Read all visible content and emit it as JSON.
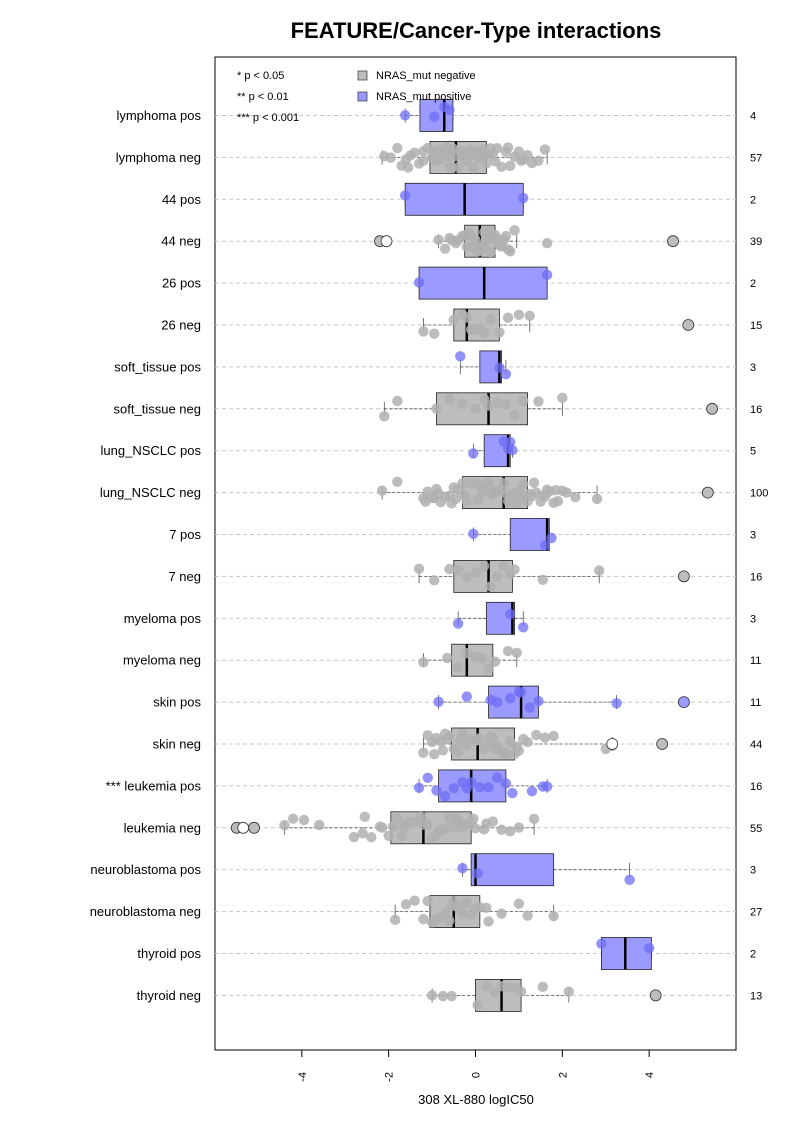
{
  "chart_data": {
    "type": "boxplot",
    "title": "FEATURE/Cancer-Type interactions",
    "xlabel": "308 XL-880 logIC50",
    "xlim": [
      -6.0,
      6.0
    ],
    "xticks": [
      -4,
      -2,
      0,
      2,
      4
    ],
    "xtick_labels": [
      "-4",
      "-2",
      "0",
      "2",
      "4"
    ],
    "grid": "horizontal dashed",
    "legend_position": "top-left",
    "legend": [
      {
        "name": "NRAS_mut negative",
        "color": "#bdbdbd"
      },
      {
        "name": "NRAS_mut positive",
        "color": "#9b9bff"
      }
    ],
    "significance_legend": [
      "* p < 0.05",
      "** p < 0.01",
      "*** p < 0.001"
    ],
    "series_colors": {
      "negative_box": "#bdbdbd",
      "positive_box": "#9b9bff",
      "negative_point": "#b0b0b0",
      "positive_point": "#6e6ef5"
    },
    "groups": [
      {
        "label": "lymphoma pos",
        "status": "positive",
        "n": "4",
        "q1": -1.28,
        "median": -0.72,
        "q3": -0.52,
        "wlo": -1.62,
        "whi": -0.52,
        "points": [
          -1.62,
          -0.95,
          -0.72,
          -0.6
        ],
        "outliers": []
      },
      {
        "label": "lymphoma neg",
        "status": "negative",
        "n": "57",
        "q1": -1.05,
        "median": -0.45,
        "q3": 0.25,
        "wlo": -2.15,
        "whi": 1.65,
        "points": [
          -2.1,
          -1.95,
          -1.8,
          -1.7,
          -1.6,
          -1.5,
          -1.4,
          -1.3,
          -1.2,
          -1.1,
          -1.0,
          -0.95,
          -0.9,
          -0.85,
          -0.8,
          -0.75,
          -0.7,
          -0.65,
          -0.6,
          -0.55,
          -0.5,
          -0.45,
          -0.4,
          -0.35,
          -0.3,
          -0.25,
          -0.2,
          -0.15,
          -0.1,
          -0.05,
          0.0,
          0.05,
          0.1,
          0.15,
          0.2,
          0.25,
          0.3,
          0.4,
          0.5,
          0.6,
          0.7,
          0.8,
          0.9,
          1.0,
          1.1,
          1.2,
          1.3,
          1.45,
          1.6,
          -1.2,
          -0.6,
          0.35,
          0.75,
          -0.3,
          0.45,
          1.05,
          -1.55
        ],
        "outliers": []
      },
      {
        "label": "44 pos",
        "status": "positive",
        "n": "2",
        "q1": -1.62,
        "median": -0.25,
        "q3": 1.1,
        "wlo": -1.62,
        "whi": 1.1,
        "points": [
          -1.62,
          1.1
        ],
        "outliers": []
      },
      {
        "label": "44 neg",
        "status": "negative",
        "n": "39",
        "q1": -0.25,
        "median": 0.1,
        "q3": 0.45,
        "wlo": -0.85,
        "whi": 0.95,
        "points": [
          -2.05,
          -0.85,
          -0.7,
          -0.55,
          -0.4,
          -0.3,
          -0.25,
          -0.2,
          -0.15,
          -0.1,
          -0.05,
          0.0,
          0.05,
          0.1,
          0.12,
          0.15,
          0.2,
          0.25,
          0.3,
          0.35,
          0.4,
          0.45,
          0.5,
          0.55,
          0.6,
          0.7,
          0.8,
          0.9,
          -0.6,
          -0.45,
          0.0,
          0.2,
          0.35,
          0.65,
          0.75,
          1.65
        ],
        "outliers": [
          {
            "x": -2.2,
            "open": false
          },
          {
            "x": -2.05,
            "open": true
          },
          {
            "x": 4.55,
            "open": false
          }
        ]
      },
      {
        "label": "26 pos",
        "status": "positive",
        "n": "2",
        "q1": -1.3,
        "median": 0.2,
        "q3": 1.65,
        "wlo": -1.3,
        "whi": 1.65,
        "points": [
          -1.3,
          1.65
        ],
        "outliers": []
      },
      {
        "label": "26 neg",
        "status": "negative",
        "n": "15",
        "q1": -0.5,
        "median": -0.2,
        "q3": 0.55,
        "wlo": -1.2,
        "whi": 1.25,
        "points": [
          -1.2,
          -0.95,
          -0.5,
          -0.3,
          -0.2,
          -0.1,
          0.0,
          0.1,
          0.2,
          0.35,
          0.55,
          0.75,
          1.0,
          1.25
        ],
        "outliers": [
          {
            "x": 4.9,
            "open": false
          }
        ]
      },
      {
        "label": "soft_tissue pos",
        "status": "positive",
        "n": "3",
        "q1": 0.1,
        "median": 0.55,
        "q3": 0.6,
        "wlo": -0.35,
        "whi": 0.7,
        "points": [
          -0.35,
          0.55,
          0.7
        ],
        "outliers": []
      },
      {
        "label": "soft_tissue neg",
        "status": "negative",
        "n": "16",
        "q1": -0.9,
        "median": 0.3,
        "q3": 1.2,
        "wlo": -2.1,
        "whi": 2.0,
        "points": [
          -2.1,
          -1.8,
          -0.9,
          -0.6,
          -0.3,
          0.0,
          0.2,
          0.3,
          0.5,
          0.7,
          0.9,
          1.1,
          1.45,
          2.0
        ],
        "outliers": [
          {
            "x": 5.45,
            "open": false
          }
        ]
      },
      {
        "label": "lung_NSCLC pos",
        "status": "positive",
        "n": "5",
        "q1": 0.2,
        "median": 0.75,
        "q3": 0.8,
        "wlo": -0.05,
        "whi": 0.85,
        "points": [
          -0.05,
          0.65,
          0.75,
          0.8,
          0.85
        ],
        "outliers": []
      },
      {
        "label": "lung_NSCLC neg",
        "status": "negative",
        "n": "100",
        "q1": -0.3,
        "median": 0.65,
        "q3": 1.2,
        "wlo": -2.15,
        "whi": 2.8,
        "points": [
          -2.15,
          -1.8,
          -1.2,
          -1.1,
          -1.0,
          -0.9,
          -0.8,
          -0.7,
          -0.6,
          -0.5,
          -0.4,
          -0.3,
          -0.2,
          -0.1,
          0.0,
          0.1,
          0.2,
          0.3,
          0.4,
          0.5,
          0.6,
          0.7,
          0.8,
          0.9,
          1.0,
          1.1,
          1.2,
          1.3,
          1.4,
          1.5,
          1.6,
          1.7,
          1.8,
          1.9,
          2.0,
          2.1,
          2.3,
          2.8,
          -1.15,
          -0.85,
          -0.55,
          -0.25,
          0.05,
          0.35,
          0.65,
          0.95,
          1.25,
          1.55,
          1.85,
          -0.95,
          -0.45,
          0.15,
          0.45,
          0.75,
          1.05,
          1.35,
          1.65
        ],
        "outliers": [
          {
            "x": 5.35,
            "open": false
          }
        ]
      },
      {
        "label": "7 pos",
        "status": "positive",
        "n": "3",
        "q1": 0.8,
        "median": 1.65,
        "q3": 1.7,
        "wlo": -0.05,
        "whi": 1.7,
        "points": [
          -0.05,
          1.6,
          1.75
        ],
        "outliers": []
      },
      {
        "label": "7 neg",
        "status": "negative",
        "n": "16",
        "q1": -0.5,
        "median": 0.3,
        "q3": 0.85,
        "wlo": -1.3,
        "whi": 2.85,
        "points": [
          -1.3,
          -0.95,
          -0.6,
          -0.4,
          -0.2,
          0.0,
          0.2,
          0.35,
          0.5,
          0.65,
          0.8,
          0.9,
          1.55,
          2.85
        ],
        "outliers": [
          {
            "x": 4.8,
            "open": false
          }
        ]
      },
      {
        "label": "myeloma pos",
        "status": "positive",
        "n": "3",
        "q1": 0.25,
        "median": 0.85,
        "q3": 0.9,
        "wlo": -0.4,
        "whi": 1.1,
        "points": [
          -0.4,
          0.8,
          1.1
        ],
        "outliers": []
      },
      {
        "label": "myeloma neg",
        "status": "negative",
        "n": "11",
        "q1": -0.55,
        "median": -0.2,
        "q3": 0.4,
        "wlo": -1.2,
        "whi": 0.95,
        "points": [
          -1.2,
          -0.65,
          -0.4,
          -0.2,
          0.0,
          0.15,
          0.3,
          0.45,
          0.75,
          0.95
        ],
        "outliers": []
      },
      {
        "label": "skin pos",
        "status": "positive",
        "n": "11",
        "q1": 0.3,
        "median": 1.05,
        "q3": 1.45,
        "wlo": -0.85,
        "whi": 3.25,
        "points": [
          -0.85,
          -0.2,
          0.35,
          0.5,
          0.8,
          1.0,
          1.05,
          1.25,
          1.45,
          3.25
        ],
        "outliers": [
          {
            "x": 4.8,
            "open": false,
            "positive": true
          }
        ]
      },
      {
        "label": "skin neg",
        "status": "negative",
        "n": "44",
        "q1": -0.55,
        "median": 0.05,
        "q3": 0.9,
        "wlo": -1.2,
        "whi": 3.15,
        "points": [
          -1.2,
          -1.1,
          -1.0,
          -0.9,
          -0.8,
          -0.7,
          -0.6,
          -0.5,
          -0.4,
          -0.3,
          -0.2,
          -0.1,
          0.0,
          0.1,
          0.2,
          0.3,
          0.4,
          0.5,
          0.6,
          0.7,
          0.8,
          0.9,
          1.0,
          1.2,
          1.4,
          1.6,
          1.8,
          3.0,
          3.15,
          -0.95,
          -0.65,
          -0.35,
          0.05,
          0.35,
          0.65,
          0.95,
          -0.75,
          0.45,
          1.1
        ],
        "outliers": [
          {
            "x": 3.15,
            "open": true
          },
          {
            "x": 4.3,
            "open": false
          }
        ]
      },
      {
        "label": "*** leukemia pos",
        "status": "positive",
        "n": "16",
        "q1": -0.85,
        "median": -0.1,
        "q3": 0.7,
        "wlo": -1.3,
        "whi": 1.65,
        "points": [
          -1.3,
          -1.1,
          -0.9,
          -0.7,
          -0.5,
          -0.3,
          -0.1,
          0.1,
          0.3,
          0.5,
          0.7,
          0.85,
          1.3,
          1.55,
          1.65,
          -0.2
        ],
        "outliers": []
      },
      {
        "label": "leukemia neg",
        "status": "negative",
        "n": "55",
        "q1": -1.95,
        "median": -1.2,
        "q3": -0.1,
        "wlo": -4.4,
        "whi": 1.35,
        "points": [
          -4.4,
          -4.2,
          -3.95,
          -3.6,
          -2.8,
          -2.6,
          -2.4,
          -2.2,
          -2.0,
          -1.9,
          -1.8,
          -1.7,
          -1.6,
          -1.5,
          -1.4,
          -1.3,
          -1.2,
          -1.1,
          -1.0,
          -0.9,
          -0.8,
          -0.7,
          -0.6,
          -0.5,
          -0.4,
          -0.3,
          -0.2,
          -0.1,
          0.0,
          0.2,
          0.4,
          0.6,
          0.8,
          1.0,
          1.35,
          -2.55,
          -2.15,
          -1.65,
          -1.25,
          -0.85,
          -0.45,
          -0.05,
          0.25
        ],
        "outliers": [
          {
            "x": -5.5,
            "open": false
          },
          {
            "x": -5.35,
            "open": true
          },
          {
            "x": -5.1,
            "open": false
          }
        ]
      },
      {
        "label": "neuroblastoma pos",
        "status": "positive",
        "n": "3",
        "q1": -0.1,
        "median": 0.0,
        "q3": 1.8,
        "wlo": -0.3,
        "whi": 3.55,
        "points": [
          -0.3,
          0.05,
          3.55
        ],
        "outliers": []
      },
      {
        "label": "neuroblastoma neg",
        "status": "negative",
        "n": "27",
        "q1": -1.05,
        "median": -0.5,
        "q3": 0.1,
        "wlo": -1.85,
        "whi": 1.8,
        "points": [
          -1.85,
          -1.6,
          -1.4,
          -1.2,
          -1.0,
          -0.9,
          -0.8,
          -0.7,
          -0.6,
          -0.5,
          -0.4,
          -0.3,
          -0.2,
          -0.1,
          0.0,
          0.1,
          0.3,
          0.6,
          1.0,
          1.2,
          1.8,
          -1.1,
          -0.55,
          -0.25,
          0.25
        ],
        "outliers": []
      },
      {
        "label": "thyroid pos",
        "status": "positive",
        "n": "2",
        "q1": 2.9,
        "median": 3.45,
        "q3": 4.05,
        "wlo": 2.9,
        "whi": 4.05,
        "points": [
          2.9,
          4.0
        ],
        "outliers": []
      },
      {
        "label": "thyroid neg",
        "status": "negative",
        "n": "13",
        "q1": 0.0,
        "median": 0.6,
        "q3": 1.05,
        "wlo": -1.0,
        "whi": 2.15,
        "points": [
          -1.0,
          -0.75,
          -0.55,
          0.05,
          0.25,
          0.45,
          0.6,
          0.75,
          0.9,
          1.05,
          1.55,
          2.15
        ],
        "outliers": [
          {
            "x": 4.15,
            "open": false
          }
        ]
      }
    ]
  }
}
